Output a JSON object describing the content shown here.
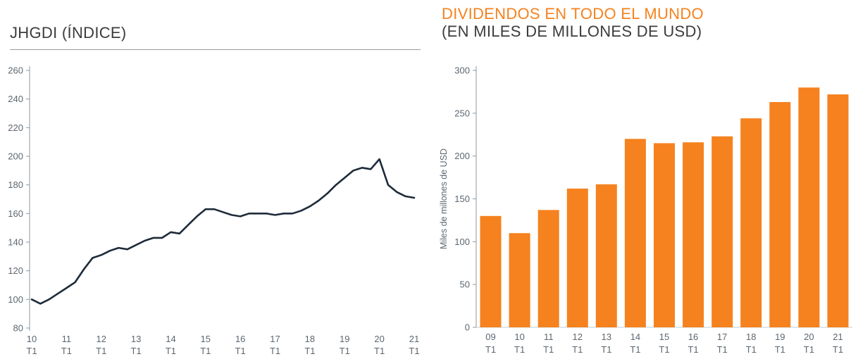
{
  "colors": {
    "orange": "#F5821E",
    "line": "#1D2B3A",
    "axis_text": "#5C6770",
    "axis_line": "#8F979E",
    "baseline": "#C7CCD1",
    "title_dark": "#3C3C3B",
    "rule": "#9B9B9B",
    "background": "#FFFFFF"
  },
  "left_chart": {
    "title": "JHGDI (ÍNDICE)"
  },
  "right_chart": {
    "title": "DIVIDENDOS EN TODO EL MUNDO",
    "subtitle": "(EN MILES DE MILLONES DE USD)",
    "ylabel": "Miles de millones de USD"
  },
  "chart_data": [
    {
      "id": "jhgdi-line",
      "type": "line",
      "title": "JHGDI (ÍNDICE)",
      "x_tick_years": [
        "10",
        "11",
        "12",
        "13",
        "14",
        "15",
        "16",
        "17",
        "18",
        "19",
        "20",
        "21"
      ],
      "x_tick_sub": "T1",
      "quarters_per_year": 4,
      "values": [
        100,
        97,
        100,
        104,
        108,
        112,
        121,
        129,
        131,
        134,
        136,
        135,
        138,
        141,
        143,
        143,
        147,
        146,
        152,
        158,
        163,
        163,
        161,
        159,
        158,
        160,
        160,
        160,
        159,
        160,
        160,
        162,
        165,
        169,
        174,
        180,
        185,
        190,
        192,
        191,
        198,
        180,
        175,
        172,
        171
      ],
      "ylim": [
        80,
        260
      ],
      "yticks": [
        80,
        100,
        120,
        140,
        160,
        180,
        200,
        220,
        240,
        260
      ],
      "line_color": "#1D2B3A",
      "grid": false,
      "legend": "none"
    },
    {
      "id": "dividends-bar",
      "type": "bar",
      "title": "DIVIDENDOS EN TODO EL MUNDO",
      "subtitle": "(EN MILES DE MILLONES DE USD)",
      "ylabel": "Miles de millones de USD",
      "categories": [
        "09 T1",
        "10 T1",
        "11 T1",
        "12 T1",
        "13 T1",
        "14 T1",
        "15 T1",
        "16 T1",
        "17 T1",
        "18 T1",
        "19 T1",
        "20 T1",
        "21 T1"
      ],
      "cat_line1": [
        "09",
        "10",
        "11",
        "12",
        "13",
        "14",
        "15",
        "16",
        "17",
        "18",
        "19",
        "20",
        "21"
      ],
      "cat_line2": "T1",
      "values": [
        130,
        110,
        137,
        162,
        167,
        220,
        215,
        216,
        223,
        244,
        263,
        280,
        272
      ],
      "ylim": [
        0,
        300
      ],
      "yticks": [
        0,
        50,
        100,
        150,
        200,
        250,
        300
      ],
      "bar_color": "#F5821E",
      "grid": false,
      "legend": "none"
    }
  ]
}
